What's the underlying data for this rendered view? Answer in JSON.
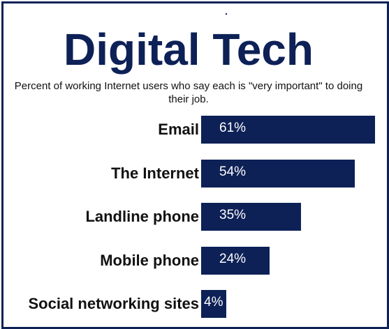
{
  "chart_data": {
    "type": "bar",
    "orientation": "horizontal",
    "title": "Digital Tech",
    "subtitle": "Percent of working Internet users who say each is \"very important\" to doing their job.",
    "categories": [
      "Email",
      "The Internet",
      "Landline phone",
      "Mobile phone",
      "Social networking sites"
    ],
    "values": [
      61,
      54,
      35,
      24,
      4
    ],
    "value_labels": [
      "61%",
      "54%",
      "35%",
      "24%",
      "4%"
    ],
    "xlim": [
      0,
      61
    ],
    "grid": false,
    "legend": "none",
    "colors": {
      "bar": "#0d2157",
      "title": "#0d2157",
      "border": "#0d2157",
      "value_text": "#ffffff"
    }
  }
}
